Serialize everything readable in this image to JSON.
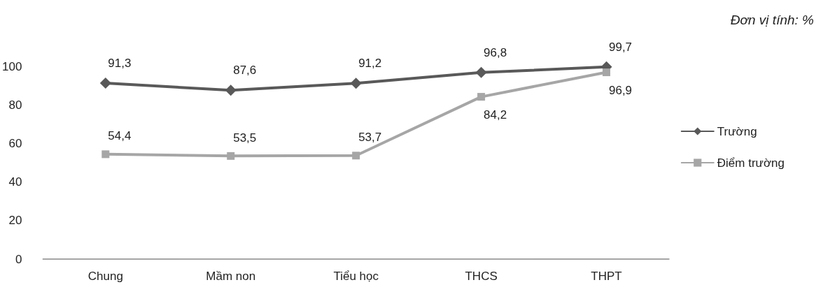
{
  "chart_data": {
    "type": "line",
    "annotations": [
      "Đơn vị tính: %"
    ],
    "categories": [
      "Chung",
      "Mầm non",
      "Tiểu học",
      "THCS",
      "THPT"
    ],
    "series": [
      {
        "name": "Trường",
        "color": "#595959",
        "marker": "diamond",
        "values": [
          91.3,
          87.6,
          91.2,
          96.8,
          99.7
        ],
        "value_labels": [
          "91,3",
          "87,6",
          "91,2",
          "96,8",
          "99,7"
        ]
      },
      {
        "name": "Điểm trường",
        "color": "#a6a6a6",
        "marker": "square",
        "values": [
          54.4,
          53.5,
          53.7,
          84.2,
          96.9
        ],
        "value_labels": [
          "54,4",
          "53,5",
          "53,7",
          "84,2",
          "96,9"
        ]
      }
    ],
    "ylim": [
      0,
      100
    ],
    "yticks": [
      0,
      20,
      40,
      60,
      80,
      100
    ],
    "grid": false,
    "legend": "right"
  }
}
